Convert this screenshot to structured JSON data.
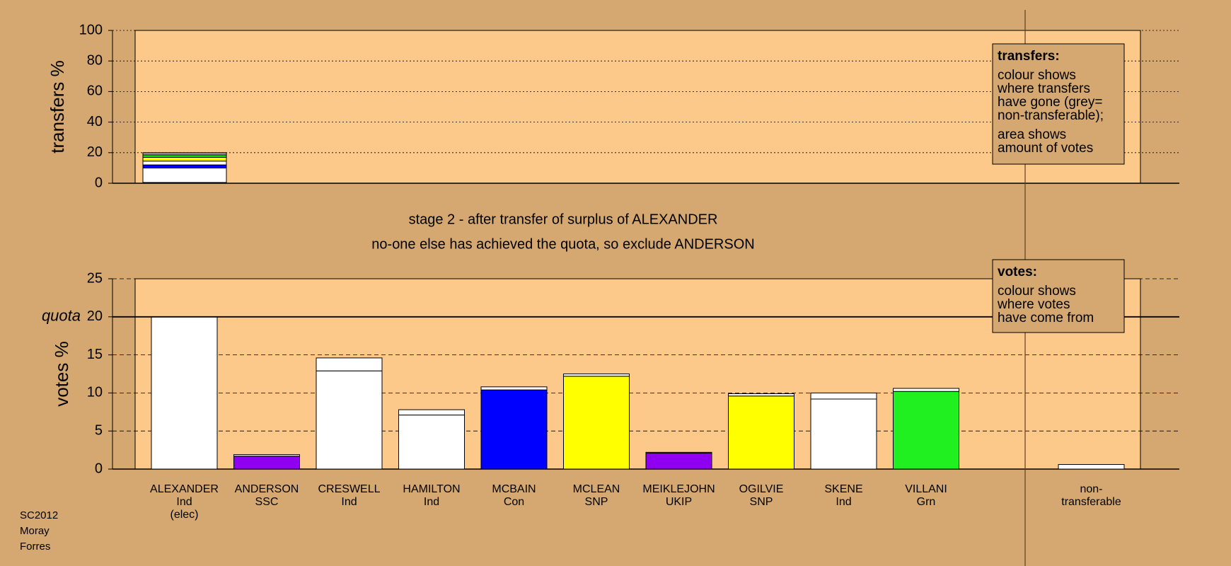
{
  "chart_data": [
    {
      "type": "stacked-bar",
      "ylabel": "transfers %",
      "ylim": [
        0,
        100
      ],
      "yticks": [
        0,
        20,
        40,
        60,
        80,
        100
      ],
      "grid": true,
      "categories": [
        "ALEXANDER"
      ],
      "series": [
        {
          "color": "#9000f0",
          "values": [
            0.5
          ]
        },
        {
          "color": "#ffffff",
          "values": [
            9.5
          ]
        },
        {
          "color": "#0000ff",
          "values": [
            2
          ]
        },
        {
          "color": "#ffffff",
          "values": [
            2.5
          ]
        },
        {
          "color": "#ffff00",
          "values": [
            2.5
          ]
        },
        {
          "color": "#20f020",
          "values": [
            1.5
          ]
        },
        {
          "color": "#a0a0a0",
          "values": [
            1.5
          ]
        }
      ],
      "annotation": {
        "heading": "transfers:",
        "lines": [
          [
            "colour shows",
            "where transfers",
            "have gone (grey=",
            "non-transferable);"
          ],
          [
            "area shows",
            "amount of votes"
          ]
        ]
      }
    },
    {
      "type": "stacked-bar",
      "ylabel": "votes %",
      "ylim": [
        0,
        25
      ],
      "yticks": [
        0,
        5,
        10,
        15,
        20,
        25
      ],
      "grid": true,
      "quota": {
        "label": "quota",
        "value": 20
      },
      "categories": [
        [
          "ALEXANDER",
          "Ind",
          "(elec)"
        ],
        [
          "ANDERSON",
          "SSC"
        ],
        [
          "CRESWELL",
          "Ind"
        ],
        [
          "HAMILTON",
          "Ind"
        ],
        [
          "MCBAIN",
          "Con"
        ],
        [
          "MCLEAN",
          "SNP"
        ],
        [
          "MEIKLEJOHN",
          "UKIP"
        ],
        [
          "OGILVIE",
          "SNP"
        ],
        [
          "SKENE",
          "Ind"
        ],
        [
          "VILLANI",
          "Grn"
        ],
        [
          "non-",
          "transferable"
        ]
      ],
      "series": [
        {
          "colors": [
            "#ffffff",
            "#9000f0",
            "#ffffff",
            "#ffffff",
            "#0000ff",
            "#ffff00",
            "#9000f0",
            "#ffff00",
            "#ffffff",
            "#20f020",
            "#ffffff"
          ],
          "values": [
            20,
            1.7,
            12.9,
            7.1,
            10.4,
            12.2,
            2.1,
            9.6,
            9.2,
            10.2,
            null
          ]
        },
        {
          "color": "#ffffff",
          "values": [
            null,
            0.2,
            1.7,
            0.7,
            0.4,
            0.3,
            0.1,
            0.3,
            0.8,
            0.4,
            0.6
          ]
        }
      ],
      "annotation": {
        "heading": "votes:",
        "lines": [
          [
            "colour shows",
            "where votes",
            "have come from"
          ]
        ]
      }
    }
  ],
  "title_lines": [
    "stage 2 - after transfer of surplus of ALEXANDER",
    "no-one else has achieved the quota, so exclude ANDERSON"
  ],
  "footer": [
    "SC2012",
    "Moray",
    "Forres"
  ]
}
